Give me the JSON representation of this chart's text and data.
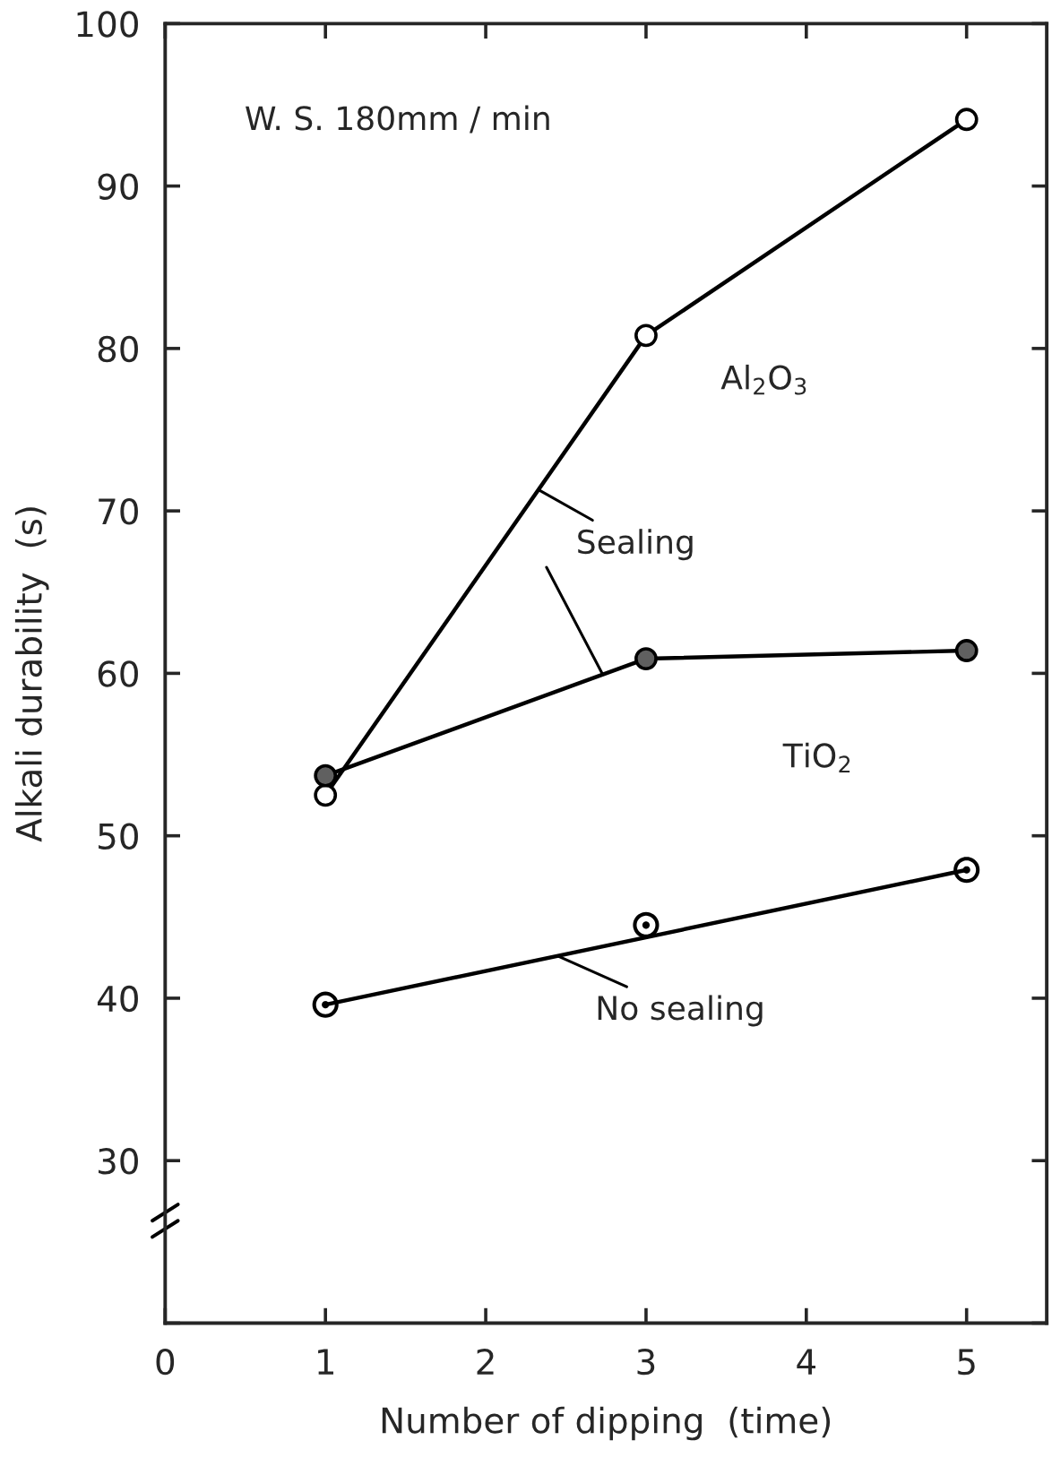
{
  "chart_data": {
    "type": "line",
    "xlabel": "Number of dipping  (time)",
    "ylabel": "Alkali durability  (s)",
    "xlim": [
      0,
      5.5
    ],
    "xticks": [
      0,
      1,
      2,
      3,
      4,
      5
    ],
    "ylim": [
      20,
      100
    ],
    "yticks": [
      {
        "value": 20,
        "label": null
      },
      30,
      40,
      50,
      60,
      70,
      80,
      90,
      100
    ],
    "grid": false,
    "marker": "circle",
    "line_style": "solid",
    "series": [
      {
        "name": "Al$_{2}$O$_{3}$",
        "color": "#000000",
        "x": [
          1,
          3,
          5
        ],
        "values": [
          52.5,
          80.8,
          94.1
        ]
      },
      {
        "name": "TiO$_{2}$",
        "color": "#000000",
        "x": [
          1,
          3,
          5
        ],
        "values": [
          53.7,
          60.9,
          61.4
        ]
      },
      {
        "type": "scatter",
        "color": "#000000",
        "x": [
          1,
          3,
          5
        ],
        "values": [
          39.6,
          44.5,
          47.9
        ]
      },
      {
        "type": "line",
        "marker": "none",
        "color": "#000000",
        "x": [
          1,
          5
        ],
        "values": [
          39.6,
          47.9
        ]
      }
    ],
    "annotations": [
      "W. S. 180mm / min",
      {
        "text": "Sealing",
        "x": 2.33,
        "y": 71.3
      },
      {
        "text": "No sealing",
        "x": 2.45,
        "y": 42.6
      }
    ]
  }
}
